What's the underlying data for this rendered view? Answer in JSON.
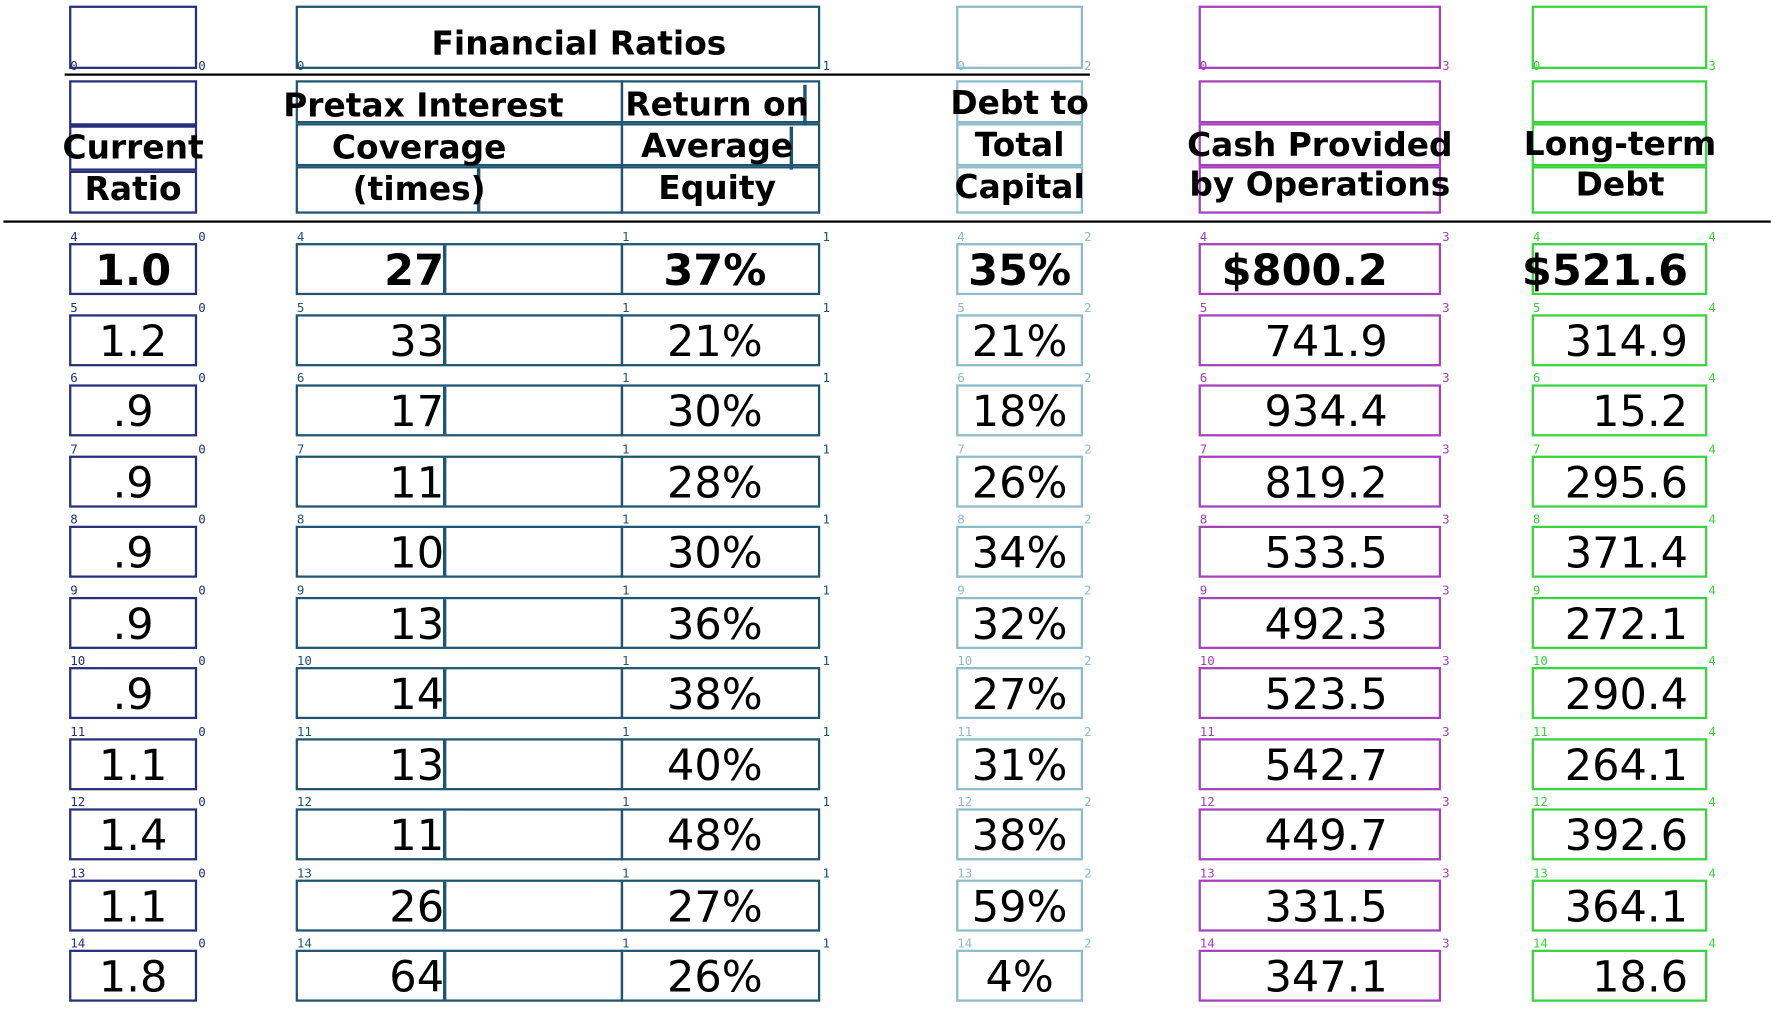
{
  "title": "Financial Ratios",
  "headers": {
    "current_ratio": [
      "Current",
      "Ratio"
    ],
    "pretax": [
      "Pretax Interest",
      "Coverage",
      "(times)"
    ],
    "roe": [
      "Return on",
      "Average",
      "Equity"
    ],
    "debt": [
      "Debt to",
      "Total",
      "Capital"
    ],
    "cash": [
      "Cash Provided",
      "by Operations"
    ],
    "ltd": [
      "Long-term",
      "Debt"
    ]
  },
  "rows": [
    {
      "cr": "1.0",
      "pic": "27",
      "roe": "37%",
      "dtc": "35%",
      "cash": "$800.2",
      "ltd": "$521.6",
      "bold": true
    },
    {
      "cr": "1.2",
      "pic": "33",
      "roe": "21%",
      "dtc": "21%",
      "cash": "741.9",
      "ltd": "314.9"
    },
    {
      "cr": ".9",
      "pic": "17",
      "roe": "30%",
      "dtc": "18%",
      "cash": "934.4",
      "ltd": "15.2"
    },
    {
      "cr": ".9",
      "pic": "11",
      "roe": "28%",
      "dtc": "26%",
      "cash": "819.2",
      "ltd": "295.6"
    },
    {
      "cr": ".9",
      "pic": "10",
      "roe": "30%",
      "dtc": "34%",
      "cash": "533.5",
      "ltd": "371.4"
    },
    {
      "cr": ".9",
      "pic": "13",
      "roe": "36%",
      "dtc": "32%",
      "cash": "492.3",
      "ltd": "272.1"
    },
    {
      "cr": ".9",
      "pic": "14",
      "roe": "38%",
      "dtc": "27%",
      "cash": "523.5",
      "ltd": "290.4"
    },
    {
      "cr": "1.1",
      "pic": "13",
      "roe": "40%",
      "dtc": "31%",
      "cash": "542.7",
      "ltd": "264.1"
    },
    {
      "cr": "1.4",
      "pic": "11",
      "roe": "48%",
      "dtc": "38%",
      "cash": "449.7",
      "ltd": "392.6"
    },
    {
      "cr": "1.1",
      "pic": "26",
      "roe": "27%",
      "dtc": "59%",
      "cash": "331.5",
      "ltd": "364.1"
    },
    {
      "cr": "1.8",
      "pic": "64",
      "roe": "26%",
      "dtc": "4%",
      "cash": "347.1",
      "ltd": "18.6"
    }
  ],
  "row_indices": [
    "4",
    "5",
    "6",
    "7",
    "8",
    "9",
    "10",
    "11",
    "12",
    "13",
    "14"
  ],
  "col_indices": [
    "0",
    "1",
    "2",
    "3",
    "4"
  ],
  "header_indices": [
    "0",
    "1",
    "2",
    "3"
  ],
  "colors": {
    "c0": "#272f7b",
    "c1": "#1e5570",
    "c2": "#8dbccb",
    "c3": "#a642b8",
    "c4": "#39d43d"
  }
}
